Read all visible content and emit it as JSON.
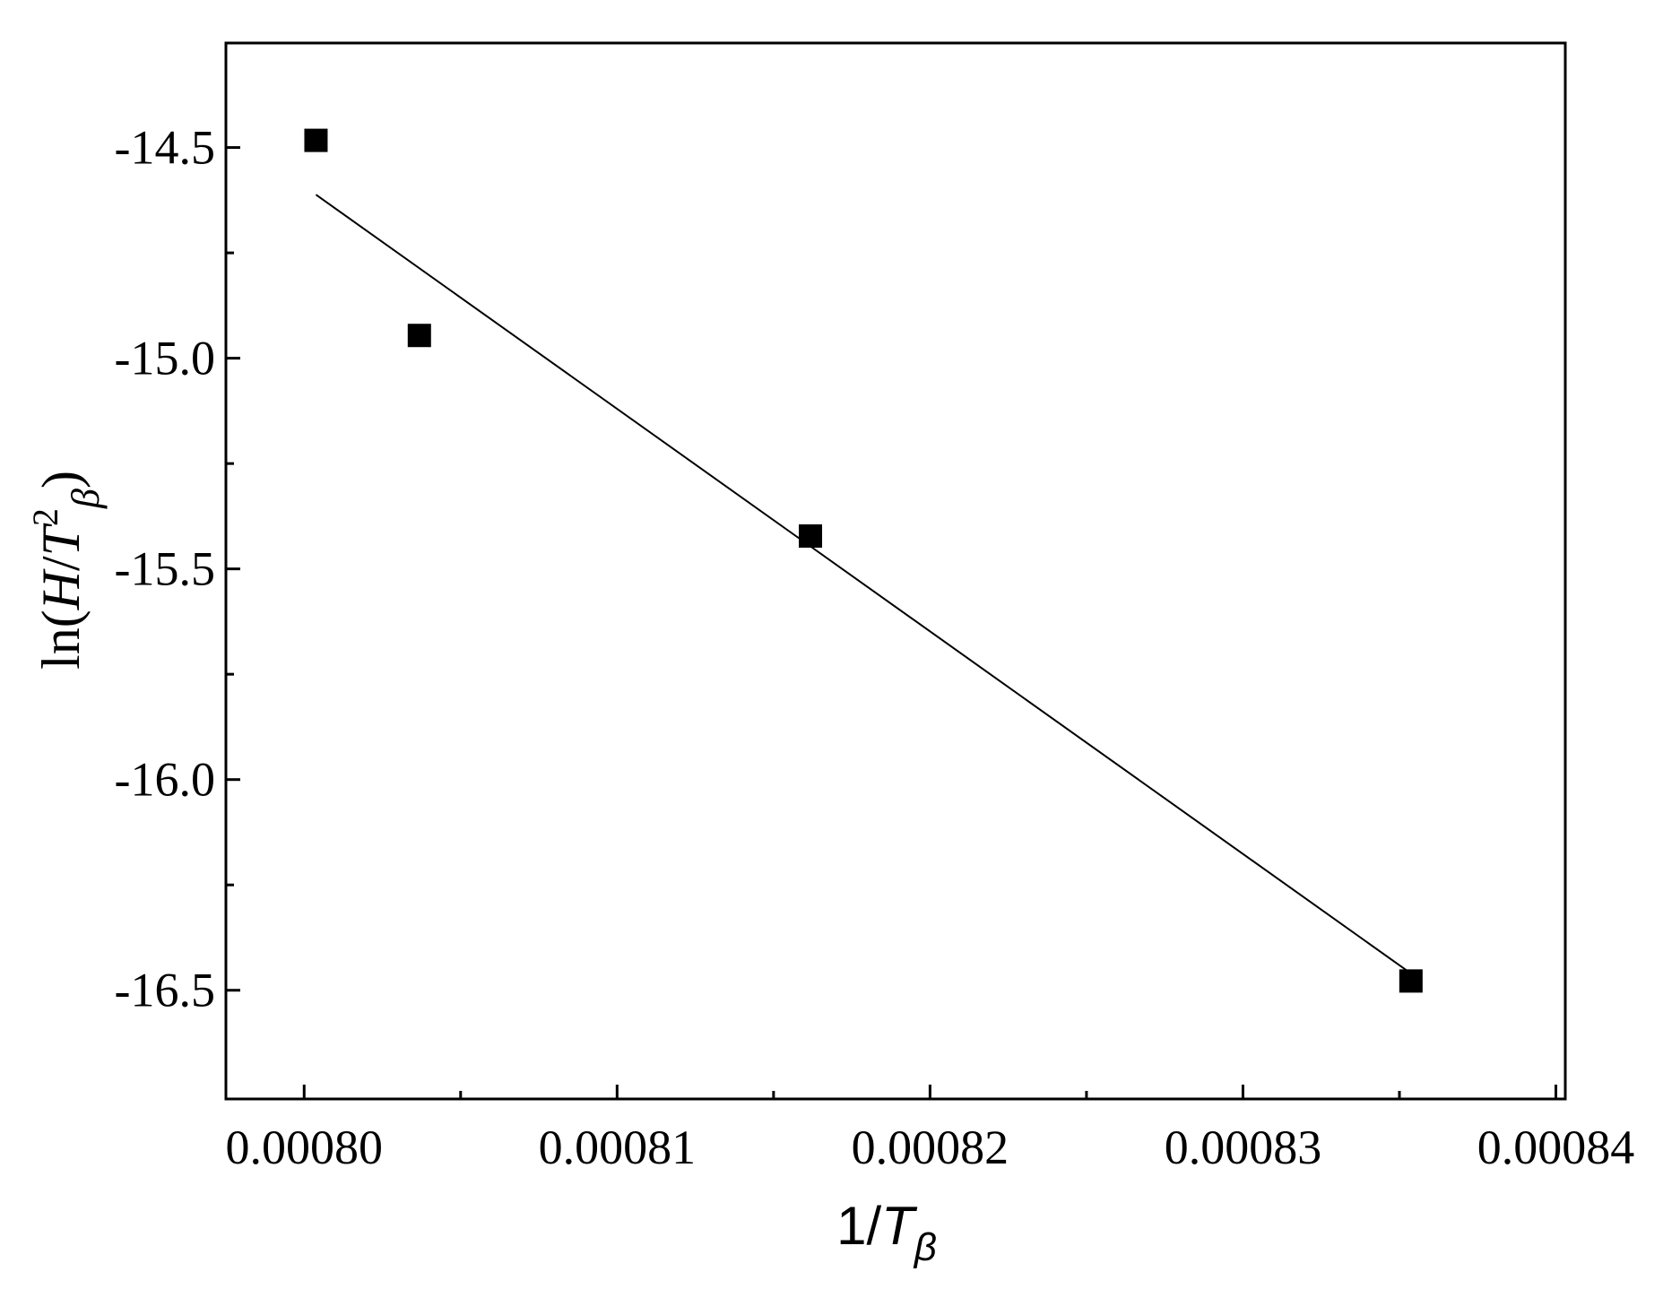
{
  "chart_data": {
    "type": "scatter",
    "x": [
      0.000800378,
      0.000803682,
      0.000816179,
      0.000835368
    ],
    "y": [
      -14.483,
      -14.946,
      -15.422,
      -16.478
    ],
    "fit_line": {
      "x": [
        0.000800378,
        0.000835368
      ],
      "y": [
        -14.612,
        -16.46
      ]
    },
    "xlim": [
      0.0007975,
      0.0008403
    ],
    "ylim": [
      -16.758,
      -14.252
    ],
    "xticks": [
      0.0008,
      0.00081,
      0.00082,
      0.00083,
      0.00084
    ],
    "xtick_labels": [
      "0.00080",
      "0.00081",
      "0.00082",
      "0.00083",
      "0.00084"
    ],
    "yticks": [
      -14.5,
      -15.0,
      -15.5,
      -16.0,
      -16.5
    ],
    "ytick_labels": [
      "-14.5",
      "-15.0",
      "-15.5",
      "-16.0",
      "-16.5"
    ],
    "xminor": [
      0.000805,
      0.000815,
      0.000825,
      0.000835
    ],
    "yminor": [
      -14.75,
      -15.25,
      -15.75,
      -16.25
    ],
    "xlabel": {
      "text": "1/T",
      "base": "1/",
      "italic": "T",
      "subscript": "β"
    },
    "ylabel": {
      "text": "ln(H/T2β)",
      "prefix": "ln(",
      "italic_h": "H",
      "slash": "/",
      "italic_t": "T",
      "superscript": "2",
      "subscript": "β",
      "suffix": ")"
    },
    "grid": false,
    "legend": "none",
    "marker": "square",
    "marker_color": "#000000",
    "line_color": "#000000",
    "axis_color": "#000000"
  }
}
